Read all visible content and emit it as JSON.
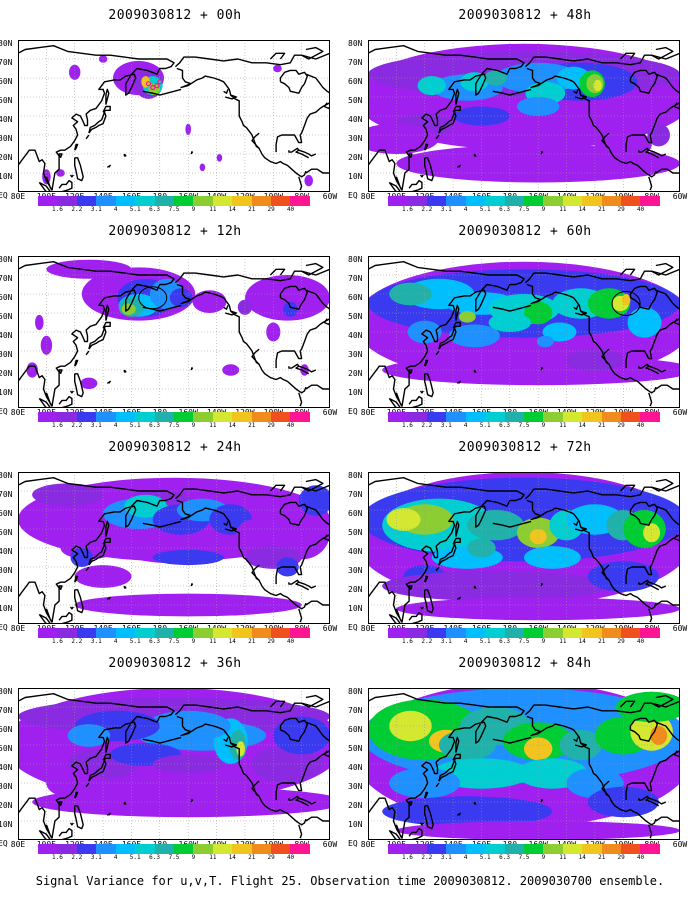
{
  "caption": "Signal Variance for u,v,T. Flight 25. Observation time 2009030812. 2009030700 ensemble.",
  "lat_labels": [
    "80N",
    "70N",
    "60N",
    "50N",
    "40N",
    "30N",
    "20N",
    "10N",
    "EQ"
  ],
  "lon_labels": [
    "80E",
    "100E",
    "120E",
    "140E",
    "160E",
    "180",
    "160W",
    "140W",
    "120W",
    "100W",
    "80W",
    "60W"
  ],
  "colorbar": {
    "levels": [
      "1.6",
      "2.2",
      "3.1",
      "4",
      "5.1",
      "6.3",
      "7.5",
      "9",
      "11",
      "14",
      "21",
      "29",
      "40"
    ],
    "colors": [
      "#a020f0",
      "#8a2be2",
      "#3a3af0",
      "#1e90ff",
      "#00bfff",
      "#00ced1",
      "#20b2aa",
      "#00cc33",
      "#8ccd32",
      "#d4e832",
      "#f2c41e",
      "#f08c1e",
      "#f0501e",
      "#ff1493"
    ]
  },
  "chart_data": [
    {
      "type": "heatmap",
      "title": "2009030812 + 00h",
      "forecast_hour": 0,
      "lat_range": [
        "EQ",
        "80N"
      ],
      "lon_range": [
        "80E",
        "60W"
      ],
      "max_level": "11-14"
    },
    {
      "type": "heatmap",
      "title": "2009030812 + 48h",
      "forecast_hour": 48,
      "lat_range": [
        "EQ",
        "80N"
      ],
      "lon_range": [
        "80E",
        "60W"
      ],
      "max_level": "11-14"
    },
    {
      "type": "heatmap",
      "title": "2009030812 + 12h",
      "forecast_hour": 12,
      "lat_range": [
        "EQ",
        "80N"
      ],
      "lon_range": [
        "80E",
        "60W"
      ],
      "max_level": "9-11"
    },
    {
      "type": "heatmap",
      "title": "2009030812 + 60h",
      "forecast_hour": 60,
      "lat_range": [
        "EQ",
        "80N"
      ],
      "lon_range": [
        "80E",
        "60W"
      ],
      "max_level": "11-14"
    },
    {
      "type": "heatmap",
      "title": "2009030812 + 24h",
      "forecast_hour": 24,
      "lat_range": [
        "EQ",
        "80N"
      ],
      "lon_range": [
        "80E",
        "60W"
      ],
      "max_level": "6.3-7.5"
    },
    {
      "type": "heatmap",
      "title": "2009030812 + 72h",
      "forecast_hour": 72,
      "lat_range": [
        "EQ",
        "80N"
      ],
      "lon_range": [
        "80E",
        "60W"
      ],
      "max_level": "14-21"
    },
    {
      "type": "heatmap",
      "title": "2009030812 + 36h",
      "forecast_hour": 36,
      "lat_range": [
        "EQ",
        "80N"
      ],
      "lon_range": [
        "80E",
        "60W"
      ],
      "max_level": "9-11"
    },
    {
      "type": "heatmap",
      "title": "2009030812 + 84h",
      "forecast_hour": 84,
      "lat_range": [
        "EQ",
        "80N"
      ],
      "lon_range": [
        "80E",
        "60W"
      ],
      "max_level": "21-29"
    }
  ]
}
